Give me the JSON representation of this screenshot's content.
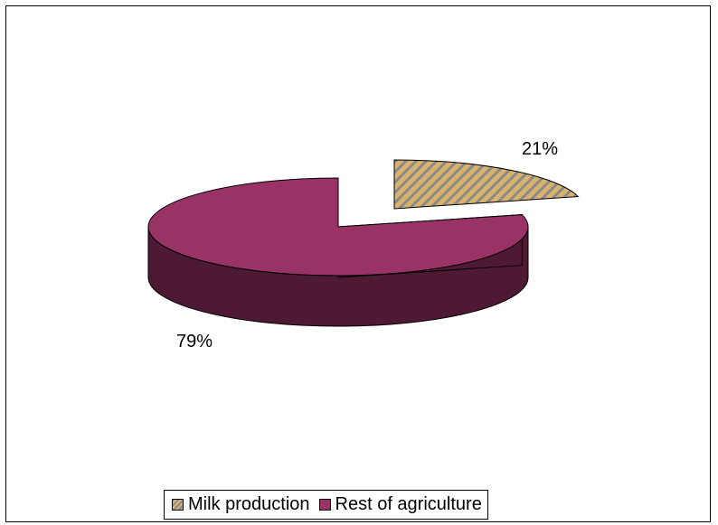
{
  "chart_data": {
    "type": "pie",
    "style": "3d-exploded",
    "slices": [
      {
        "label": "Milk production",
        "value": 21,
        "display": "21%",
        "color": "#d9b26b",
        "side_color": "#5a5238",
        "pattern": "diagonal-hatch",
        "hatch_color": "#8a8a8a"
      },
      {
        "label": "Rest of agriculture",
        "value": 79,
        "display": "79%",
        "color": "#993366",
        "side_color": "#4d1933",
        "pattern": "solid"
      }
    ],
    "legend": {
      "position": "bottom"
    }
  }
}
